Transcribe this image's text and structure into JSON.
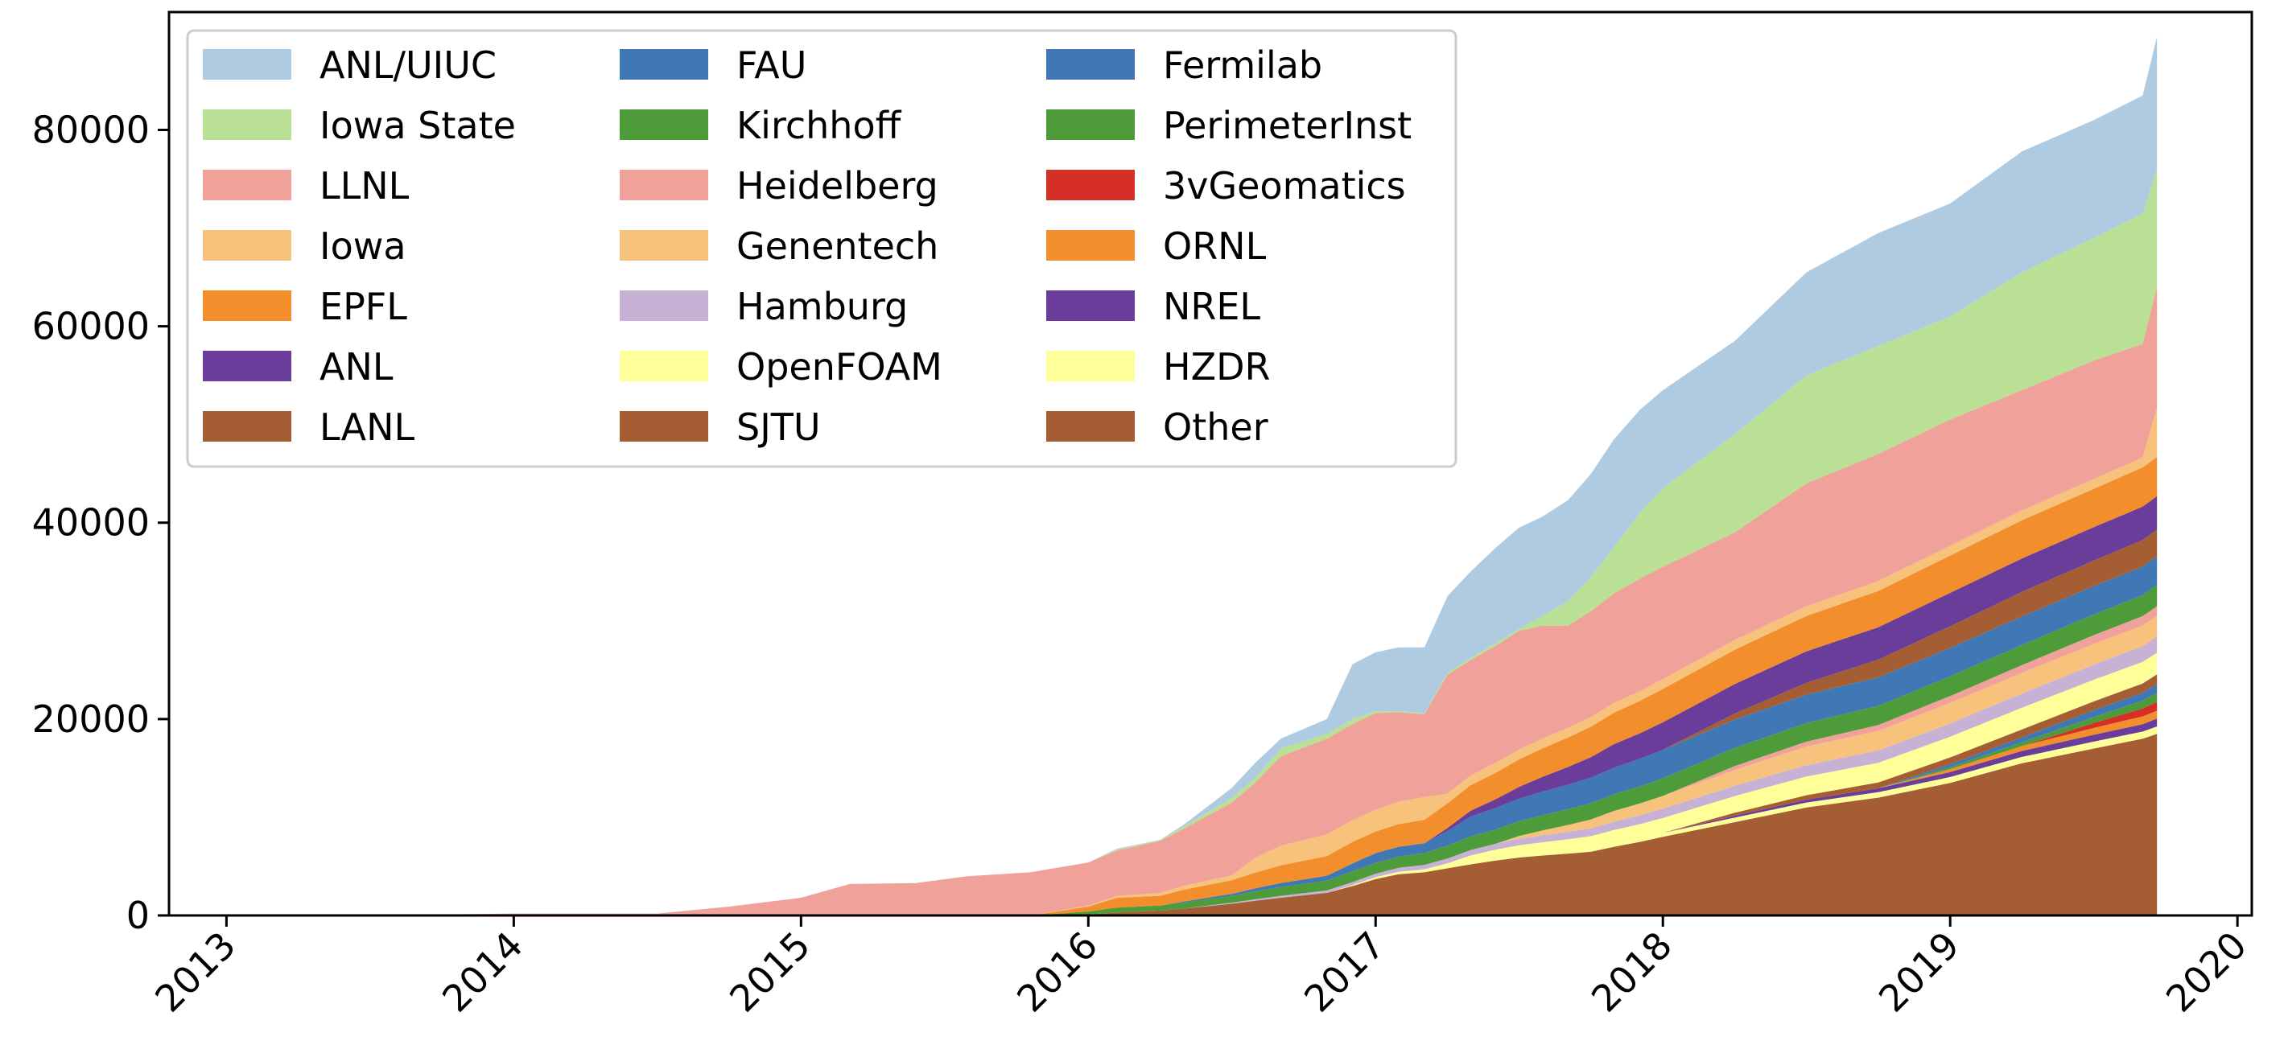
{
  "chart_data": {
    "type": "area",
    "stacked": true,
    "x": [
      2013.0,
      2013.5,
      2014.0,
      2014.25,
      2014.5,
      2014.75,
      2015.0,
      2015.17,
      2015.4,
      2015.58,
      2015.8,
      2016.0,
      2016.1,
      2016.25,
      2016.33,
      2016.5,
      2016.58,
      2016.67,
      2016.83,
      2016.92,
      2017.0,
      2017.08,
      2017.17,
      2017.25,
      2017.33,
      2017.42,
      2017.5,
      2017.58,
      2017.67,
      2017.75,
      2017.83,
      2017.92,
      2018.0,
      2018.25,
      2018.5,
      2018.75,
      2019.0,
      2019.25,
      2019.5,
      2019.67,
      2019.72
    ],
    "xlim": [
      2012.8,
      2020.05
    ],
    "ylim": [
      0,
      92000
    ],
    "x_ticks": [
      2013,
      2014,
      2015,
      2016,
      2017,
      2018,
      2019,
      2020
    ],
    "x_tick_labels": [
      "2013",
      "2014",
      "2015",
      "2016",
      "2017",
      "2018",
      "2019",
      "2020"
    ],
    "y_ticks": [
      0,
      20000,
      40000,
      60000,
      80000
    ],
    "y_tick_labels": [
      "0",
      "20000",
      "40000",
      "60000",
      "80000"
    ],
    "grid": false,
    "legend_position": "upper-left",
    "legend_columns": 3,
    "series": [
      {
        "name": "Other",
        "color": "#a55e34",
        "values": [
          0,
          0,
          0,
          0,
          0,
          0,
          0,
          0,
          0,
          0,
          0,
          100,
          300,
          500,
          700,
          1200,
          1500,
          1800,
          2300,
          3000,
          3700,
          4200,
          4400,
          4800,
          5200,
          5600,
          5900,
          6100,
          6300,
          6500,
          7000,
          7500,
          8000,
          9500,
          11000,
          12000,
          13500,
          15500,
          17000,
          18000,
          18500
        ]
      },
      {
        "name": "HZDR",
        "color": "#ffff99",
        "values": [
          0,
          0,
          0,
          0,
          0,
          0,
          0,
          0,
          0,
          0,
          0,
          0,
          0,
          0,
          0,
          0,
          0,
          0,
          0,
          100,
          200,
          250,
          300,
          300,
          300,
          320,
          350,
          350,
          370,
          380,
          400,
          400,
          420,
          460,
          500,
          550,
          600,
          650,
          700,
          730,
          750
        ]
      },
      {
        "name": "NREL",
        "color": "#6a3d9a",
        "values": [
          0,
          0,
          0,
          0,
          0,
          0,
          0,
          0,
          0,
          0,
          0,
          0,
          0,
          0,
          0,
          0,
          0,
          0,
          0,
          0,
          0,
          0,
          0,
          0,
          0,
          0,
          0,
          0,
          0,
          0,
          0,
          0,
          0,
          200,
          300,
          400,
          500,
          600,
          700,
          750,
          800
        ]
      },
      {
        "name": "ORNL",
        "color": "#f28e2b",
        "values": [
          0,
          0,
          0,
          0,
          0,
          0,
          0,
          0,
          0,
          0,
          0,
          0,
          0,
          0,
          0,
          0,
          0,
          0,
          0,
          0,
          0,
          0,
          0,
          0,
          0,
          0,
          0,
          0,
          0,
          0,
          0,
          0,
          0,
          0,
          0,
          0,
          300,
          500,
          700,
          800,
          800
        ]
      },
      {
        "name": "3vGeomatics",
        "color": "#d62f26",
        "values": [
          0,
          0,
          0,
          0,
          0,
          0,
          0,
          0,
          0,
          0,
          0,
          0,
          0,
          0,
          0,
          0,
          0,
          0,
          0,
          0,
          0,
          0,
          0,
          0,
          0,
          0,
          0,
          0,
          0,
          0,
          0,
          0,
          0,
          0,
          0,
          0,
          0,
          0,
          500,
          800,
          900
        ]
      },
      {
        "name": "PerimeterInst",
        "color": "#4e9b3a",
        "values": [
          0,
          0,
          0,
          0,
          0,
          0,
          0,
          0,
          0,
          0,
          0,
          0,
          0,
          0,
          0,
          0,
          0,
          0,
          0,
          0,
          0,
          0,
          0,
          0,
          0,
          0,
          0,
          0,
          0,
          0,
          0,
          0,
          0,
          0,
          0,
          0,
          200,
          400,
          600,
          800,
          900
        ]
      },
      {
        "name": "Fermilab",
        "color": "#3f78b4",
        "values": [
          0,
          0,
          0,
          0,
          0,
          0,
          0,
          0,
          0,
          0,
          0,
          0,
          0,
          0,
          0,
          0,
          0,
          0,
          0,
          0,
          0,
          0,
          0,
          0,
          0,
          0,
          0,
          0,
          0,
          0,
          0,
          0,
          0,
          0,
          0,
          0,
          300,
          500,
          700,
          800,
          900
        ]
      },
      {
        "name": "SJTU",
        "color": "#a55e34",
        "values": [
          0,
          0,
          0,
          0,
          0,
          0,
          0,
          0,
          0,
          0,
          0,
          0,
          0,
          0,
          0,
          0,
          0,
          0,
          0,
          0,
          0,
          0,
          0,
          0,
          0,
          0,
          0,
          0,
          0,
          0,
          0,
          0,
          0,
          300,
          450,
          600,
          700,
          800,
          900,
          950,
          1000
        ]
      },
      {
        "name": "OpenFOAM",
        "color": "#ffff99",
        "values": [
          0,
          0,
          0,
          0,
          0,
          0,
          0,
          0,
          0,
          0,
          0,
          0,
          0,
          0,
          0,
          0,
          0,
          0,
          0,
          0,
          0,
          0,
          0,
          200,
          600,
          800,
          900,
          1000,
          1100,
          1200,
          1300,
          1400,
          1500,
          1700,
          1900,
          2000,
          2100,
          2200,
          2200,
          2200,
          2200
        ]
      },
      {
        "name": "Hamburg",
        "color": "#c7b2d6",
        "values": [
          0,
          0,
          0,
          0,
          0,
          0,
          0,
          0,
          0,
          0,
          0,
          0,
          0,
          0,
          0,
          100,
          150,
          200,
          250,
          300,
          350,
          400,
          450,
          500,
          550,
          600,
          650,
          700,
          750,
          800,
          850,
          900,
          950,
          1050,
          1150,
          1250,
          1350,
          1450,
          1550,
          1600,
          1650
        ]
      },
      {
        "name": "Genentech",
        "color": "#f6c27c",
        "values": [
          0,
          0,
          0,
          0,
          0,
          0,
          0,
          0,
          0,
          0,
          0,
          0,
          0,
          0,
          0,
          0,
          0,
          0,
          0,
          0,
          0,
          0,
          0,
          0,
          0,
          0,
          300,
          500,
          700,
          900,
          1100,
          1200,
          1300,
          1600,
          1900,
          2000,
          2100,
          2100,
          2100,
          2100,
          2100
        ]
      },
      {
        "name": "Heidelberg",
        "color": "#f0a19a",
        "values": [
          0,
          0,
          0,
          0,
          0,
          0,
          0,
          0,
          0,
          0,
          0,
          0,
          0,
          0,
          0,
          0,
          0,
          0,
          0,
          0,
          0,
          0,
          0,
          0,
          0,
          0,
          0,
          0,
          0,
          0,
          0,
          0,
          0,
          400,
          500,
          600,
          700,
          800,
          900,
          950,
          1000
        ]
      },
      {
        "name": "Kirchhoff",
        "color": "#4e9b3a",
        "values": [
          0,
          0,
          0,
          0,
          0,
          0,
          0,
          0,
          0,
          0,
          0,
          300,
          500,
          500,
          600,
          700,
          800,
          900,
          1000,
          1100,
          1100,
          1150,
          1200,
          1300,
          1400,
          1450,
          1500,
          1550,
          1600,
          1650,
          1700,
          1750,
          1800,
          1850,
          1900,
          1950,
          2000,
          2050,
          2100,
          2150,
          2200
        ]
      },
      {
        "name": "FAU",
        "color": "#3f78b4",
        "values": [
          0,
          0,
          0,
          0,
          0,
          0,
          0,
          0,
          0,
          0,
          0,
          0,
          0,
          0,
          100,
          200,
          300,
          400,
          500,
          800,
          1000,
          1000,
          1000,
          1500,
          2000,
          2200,
          2300,
          2400,
          2500,
          2600,
          2700,
          2800,
          2900,
          2900,
          2900,
          2900,
          2900,
          2900,
          2900,
          2900,
          2900
        ]
      },
      {
        "name": "LANL",
        "color": "#a55e34",
        "values": [
          0,
          0,
          0,
          0,
          0,
          0,
          0,
          0,
          0,
          0,
          0,
          0,
          0,
          0,
          0,
          0,
          0,
          0,
          0,
          0,
          0,
          0,
          0,
          0,
          0,
          0,
          0,
          0,
          0,
          0,
          0,
          0,
          0,
          600,
          1200,
          1800,
          2200,
          2500,
          2600,
          2700,
          2700
        ]
      },
      {
        "name": "ANL",
        "color": "#6a3d9a",
        "values": [
          0,
          0,
          0,
          0,
          0,
          0,
          0,
          0,
          0,
          0,
          0,
          0,
          0,
          0,
          0,
          0,
          0,
          0,
          0,
          0,
          0,
          0,
          0,
          300,
          600,
          900,
          1200,
          1500,
          1800,
          2100,
          2400,
          2600,
          2800,
          3000,
          3200,
          3300,
          3400,
          3400,
          3400,
          3400,
          3400
        ]
      },
      {
        "name": "EPFL",
        "color": "#f28e2b",
        "values": [
          0,
          0,
          0,
          0,
          0,
          0,
          0,
          0,
          0,
          0,
          0,
          500,
          1000,
          1000,
          1200,
          1400,
          1600,
          1800,
          2000,
          2200,
          2200,
          2300,
          2400,
          2500,
          2600,
          2700,
          2800,
          2900,
          3000,
          3100,
          3200,
          3300,
          3400,
          3500,
          3600,
          3700,
          3800,
          3900,
          3900,
          4000,
          4000
        ]
      },
      {
        "name": "Iowa",
        "color": "#f6c27c",
        "values": [
          0,
          0,
          0,
          0,
          0,
          0,
          0,
          0,
          0,
          0,
          0,
          100,
          200,
          300,
          400,
          500,
          1500,
          2000,
          2200,
          2200,
          2200,
          2300,
          2300,
          1000,
          1000,
          1000,
          1000,
          1000,
          1000,
          1000,
          1000,
          1000,
          1000,
          1000,
          1000,
          1000,
          1000,
          1000,
          1000,
          1000,
          5000
        ]
      },
      {
        "name": "LLNL",
        "color": "#f0a19a",
        "values": [
          0,
          0,
          50,
          100,
          150,
          250,
          450,
          500,
          600,
          650,
          700,
          800,
          750,
          700,
          600,
          550,
          500,
          450,
          300,
          200,
          200,
          150,
          100,
          50,
          0,
          0,
          0,
          0,
          0,
          0,
          0,
          0,
          0,
          0,
          0,
          0,
          0,
          0,
          0,
          0,
          0
        ]
      },
      {
        "name": "Iowa State",
        "color": "#b9e095",
        "values": [
          0,
          0,
          0,
          0,
          0,
          0,
          0,
          0,
          0,
          0,
          0,
          0,
          0,
          0,
          0,
          0,
          0,
          0,
          0,
          0,
          0,
          0,
          0,
          0,
          0,
          0,
          0,
          0,
          0,
          0,
          0,
          0,
          0,
          0,
          0,
          0,
          0,
          0,
          0,
          0,
          0
        ]
      },
      {
        "name": "ANL/UIUC",
        "color": "#afcbe2",
        "values": [
          0,
          0,
          0,
          0,
          0,
          0,
          0,
          0,
          0,
          0,
          0,
          0,
          0,
          0,
          0,
          0,
          0,
          0,
          0,
          0,
          0,
          0,
          0,
          0,
          0,
          0,
          0,
          0,
          0,
          0,
          0,
          0,
          0,
          0,
          0,
          0,
          0,
          0,
          0,
          0,
          0
        ]
      }
    ],
    "top_series_targets": {
      "LLNL_cumulative_top": [
        0,
        0,
        200,
        200,
        200,
        900,
        1800,
        3200,
        3300,
        4000,
        4400,
        5400,
        6600,
        7600,
        8800,
        11500,
        13500,
        16200,
        18000,
        19500,
        20600,
        20700,
        20500,
        24500,
        26000,
        27500,
        29000,
        29500,
        29500,
        31000,
        32800,
        34300,
        35500,
        39000,
        44000,
        47000,
        50500,
        53500,
        56500,
        58200,
        64000
      ]
    },
    "legend_order": [
      "ANL/UIUC",
      "Iowa State",
      "LLNL",
      "Iowa",
      "EPFL",
      "ANL",
      "LANL",
      "FAU",
      "Kirchhoff",
      "Heidelberg",
      "Genentech",
      "Hamburg",
      "OpenFOAM",
      "SJTU",
      "Fermilab",
      "PerimeterInst",
      "3vGeomatics",
      "ORNL",
      "NREL",
      "HZDR",
      "Other"
    ],
    "legend_colors": {
      "ANL/UIUC": "#afcbe2",
      "Iowa State": "#b9e095",
      "LLNL": "#f0a19a",
      "Iowa": "#f6c27c",
      "EPFL": "#f28e2b",
      "ANL": "#6a3d9a",
      "LANL": "#a55e34",
      "FAU": "#3f78b4",
      "Kirchhoff": "#4e9b3a",
      "Heidelberg": "#f0a19a",
      "Genentech": "#f6c27c",
      "Hamburg": "#c7b2d6",
      "OpenFOAM": "#ffff99",
      "SJTU": "#a55e34",
      "Fermilab": "#3f78b4",
      "PerimeterInst": "#4e9b3a",
      "3vGeomatics": "#d62f26",
      "ORNL": "#f28e2b",
      "NREL": "#6a3d9a",
      "HZDR": "#ffff99",
      "Other": "#a55e34"
    },
    "totals": {
      "x": [
        2013.0,
        2013.5,
        2014.0,
        2014.25,
        2014.5,
        2014.75,
        2015.0,
        2015.17,
        2015.4,
        2015.58,
        2015.8,
        2016.0,
        2016.1,
        2016.25,
        2016.33,
        2016.5,
        2016.58,
        2016.67,
        2016.83,
        2016.92,
        2017.0,
        2017.08,
        2017.17,
        2017.25,
        2017.33,
        2017.42,
        2017.5,
        2017.58,
        2017.67,
        2017.75,
        2017.83,
        2017.92,
        2018.0,
        2018.25,
        2018.5,
        2018.75,
        2019.0,
        2019.25,
        2019.5,
        2019.67,
        2019.72
      ],
      "iowa_state_top": [
        0,
        0,
        200,
        200,
        200,
        900,
        1800,
        3200,
        3300,
        4000,
        4400,
        5400,
        6700,
        7700,
        9000,
        12000,
        14000,
        17000,
        18500,
        20000,
        20800,
        20800,
        20600,
        24700,
        26200,
        27800,
        29200,
        30500,
        32000,
        34500,
        37500,
        41000,
        43500,
        49000,
        55000,
        58000,
        61000,
        65500,
        69000,
        71500,
        76000
      ],
      "total_top": [
        0,
        0,
        200,
        200,
        200,
        900,
        1800,
        3200,
        3300,
        4000,
        4400,
        5400,
        6800,
        7700,
        9200,
        13000,
        15500,
        18000,
        20000,
        25600,
        26800,
        27300,
        27300,
        32500,
        35000,
        37500,
        39500,
        40600,
        42300,
        45000,
        48500,
        51500,
        53500,
        58500,
        65500,
        69500,
        72500,
        77800,
        81000,
        83500,
        89500
      ]
    }
  }
}
